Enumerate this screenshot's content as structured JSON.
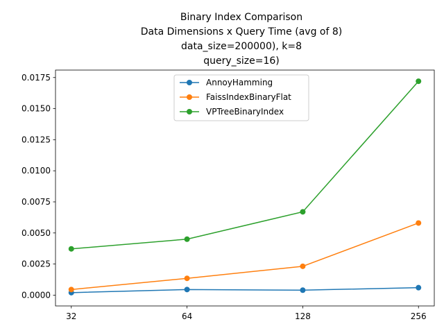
{
  "chart_data": {
    "type": "line",
    "title_lines": [
      "Binary Index Comparison",
      "Data Dimensions x Query Time (avg of 8)",
      "data_size=200000), k=8",
      "query_size=16)"
    ],
    "xlabel": "",
    "ylabel": "",
    "x_scale": "log2",
    "x": [
      32,
      64,
      128,
      256
    ],
    "x_tick_labels": [
      "32",
      "64",
      "128",
      "256"
    ],
    "ylim": [
      -0.00087,
      0.0181
    ],
    "y_ticks": [
      0.0,
      0.0025,
      0.005,
      0.0075,
      0.01,
      0.0125,
      0.015,
      0.0175
    ],
    "y_tick_labels": [
      "0.0000",
      "0.0025",
      "0.0050",
      "0.0075",
      "0.0100",
      "0.0125",
      "0.0150",
      "0.0175"
    ],
    "grid": false,
    "legend_position": "upper-center",
    "series": [
      {
        "name": "AnnoyHamming",
        "color": "#1f77b4",
        "marker": "circle",
        "values": [
          0.0002,
          0.00045,
          0.0004,
          0.0006
        ]
      },
      {
        "name": "FaissIndexBinaryFlat",
        "color": "#ff7f0e",
        "marker": "circle",
        "values": [
          0.00045,
          0.00135,
          0.00232,
          0.0058
        ]
      },
      {
        "name": "VPTreeBinaryIndex",
        "color": "#2ca02c",
        "marker": "circle",
        "values": [
          0.00372,
          0.0045,
          0.0067,
          0.0172
        ]
      }
    ]
  }
}
